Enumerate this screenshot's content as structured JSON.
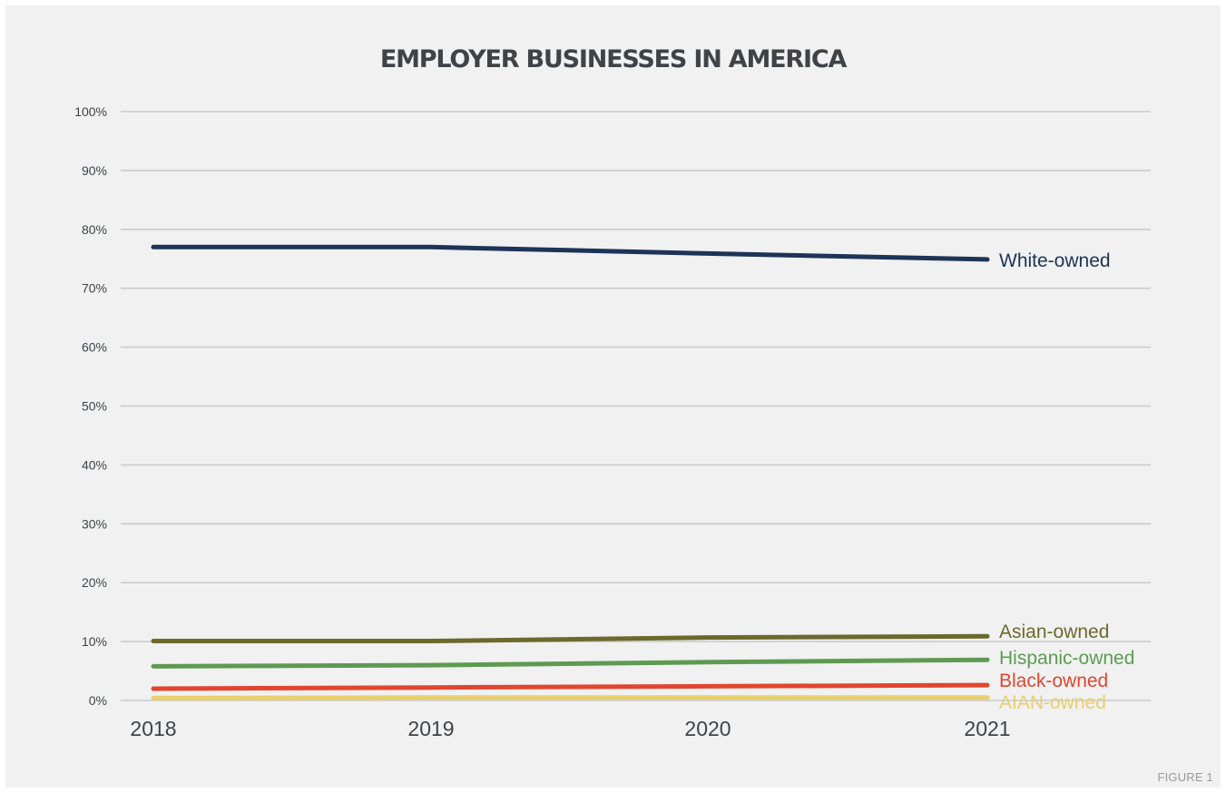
{
  "chart_data": {
    "type": "line",
    "title": "EMPLOYER BUSINESSES IN AMERICA",
    "figure_label": "FIGURE 1",
    "x": [
      "2018",
      "2019",
      "2020",
      "2021"
    ],
    "ylim": [
      0,
      100
    ],
    "yticks": [
      0,
      10,
      20,
      30,
      40,
      50,
      60,
      70,
      80,
      90,
      100
    ],
    "ytick_labels": [
      "0%",
      "10%",
      "20%",
      "30%",
      "40%",
      "50%",
      "60%",
      "70%",
      "80%",
      "90%",
      "100%"
    ],
    "grid": true,
    "legend": "direct labels at right end of lines",
    "series": [
      {
        "name": "White-owned",
        "values": [
          77.0,
          77.0,
          75.9,
          74.9
        ],
        "color": "#1e3358"
      },
      {
        "name": "Asian-owned",
        "values": [
          10.1,
          10.1,
          10.7,
          10.9
        ],
        "color": "#6b6a2c"
      },
      {
        "name": "Hispanic-owned",
        "values": [
          5.8,
          6.0,
          6.5,
          6.9
        ],
        "color": "#5e9a52"
      },
      {
        "name": "Black-owned",
        "values": [
          2.0,
          2.2,
          2.4,
          2.6
        ],
        "color": "#e2452f"
      },
      {
        "name": "AIAN-owned",
        "values": [
          0.4,
          0.5,
          0.5,
          0.5
        ],
        "color": "#e8cf6c"
      }
    ]
  }
}
